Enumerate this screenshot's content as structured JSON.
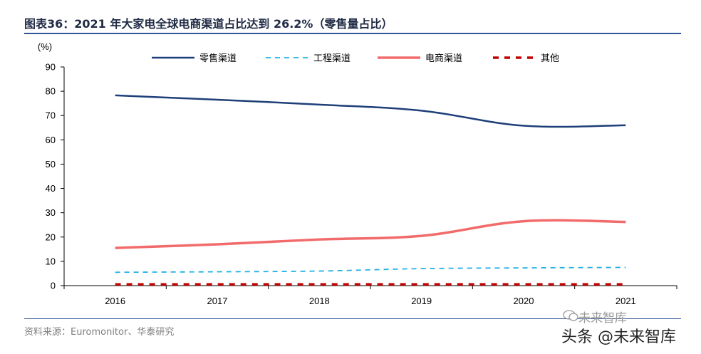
{
  "header": {
    "figure_label": "图表36：",
    "title_text": "2021 年大家电全球电商渠道占比达到 26.2%（零售量占比）"
  },
  "footer": {
    "source": "资料来源：Euromonitor、华泰研究",
    "watermark_top": "未来智库",
    "watermark_bottom": "头条 @未来智库"
  },
  "colors": {
    "retail": "#1f3f7a",
    "engineering": "#22b0e6",
    "ecommerce": "#f26b6b",
    "other": "#c00000",
    "rule": "#2f5597"
  },
  "chart_data": {
    "type": "line",
    "title": "2021 年大家电全球电商渠道占比达到 26.2%（零售量占比）",
    "ylabel": "(%)",
    "xlabel": "",
    "ylim": [
      0,
      90
    ],
    "yticks": [
      "0",
      "10",
      "20",
      "30",
      "40",
      "50",
      "60",
      "70",
      "80",
      "90"
    ],
    "categories": [
      "2016",
      "2017",
      "2018",
      "2019",
      "2020",
      "2021"
    ],
    "legend_position": "top",
    "series": [
      {
        "name": "零售渠道",
        "style": "solid",
        "values": [
          78.3,
          76.5,
          74.5,
          72.0,
          65.8,
          66.0
        ]
      },
      {
        "name": "工程渠道",
        "style": "dashed",
        "values": [
          5.5,
          5.7,
          6.0,
          7.0,
          7.3,
          7.5
        ]
      },
      {
        "name": "电商渠道",
        "style": "solid",
        "values": [
          15.5,
          17.0,
          19.0,
          20.5,
          26.5,
          26.2
        ]
      },
      {
        "name": "其他",
        "style": "dashed",
        "values": [
          0.5,
          0.5,
          0.5,
          0.5,
          0.5,
          0.5
        ]
      }
    ]
  }
}
